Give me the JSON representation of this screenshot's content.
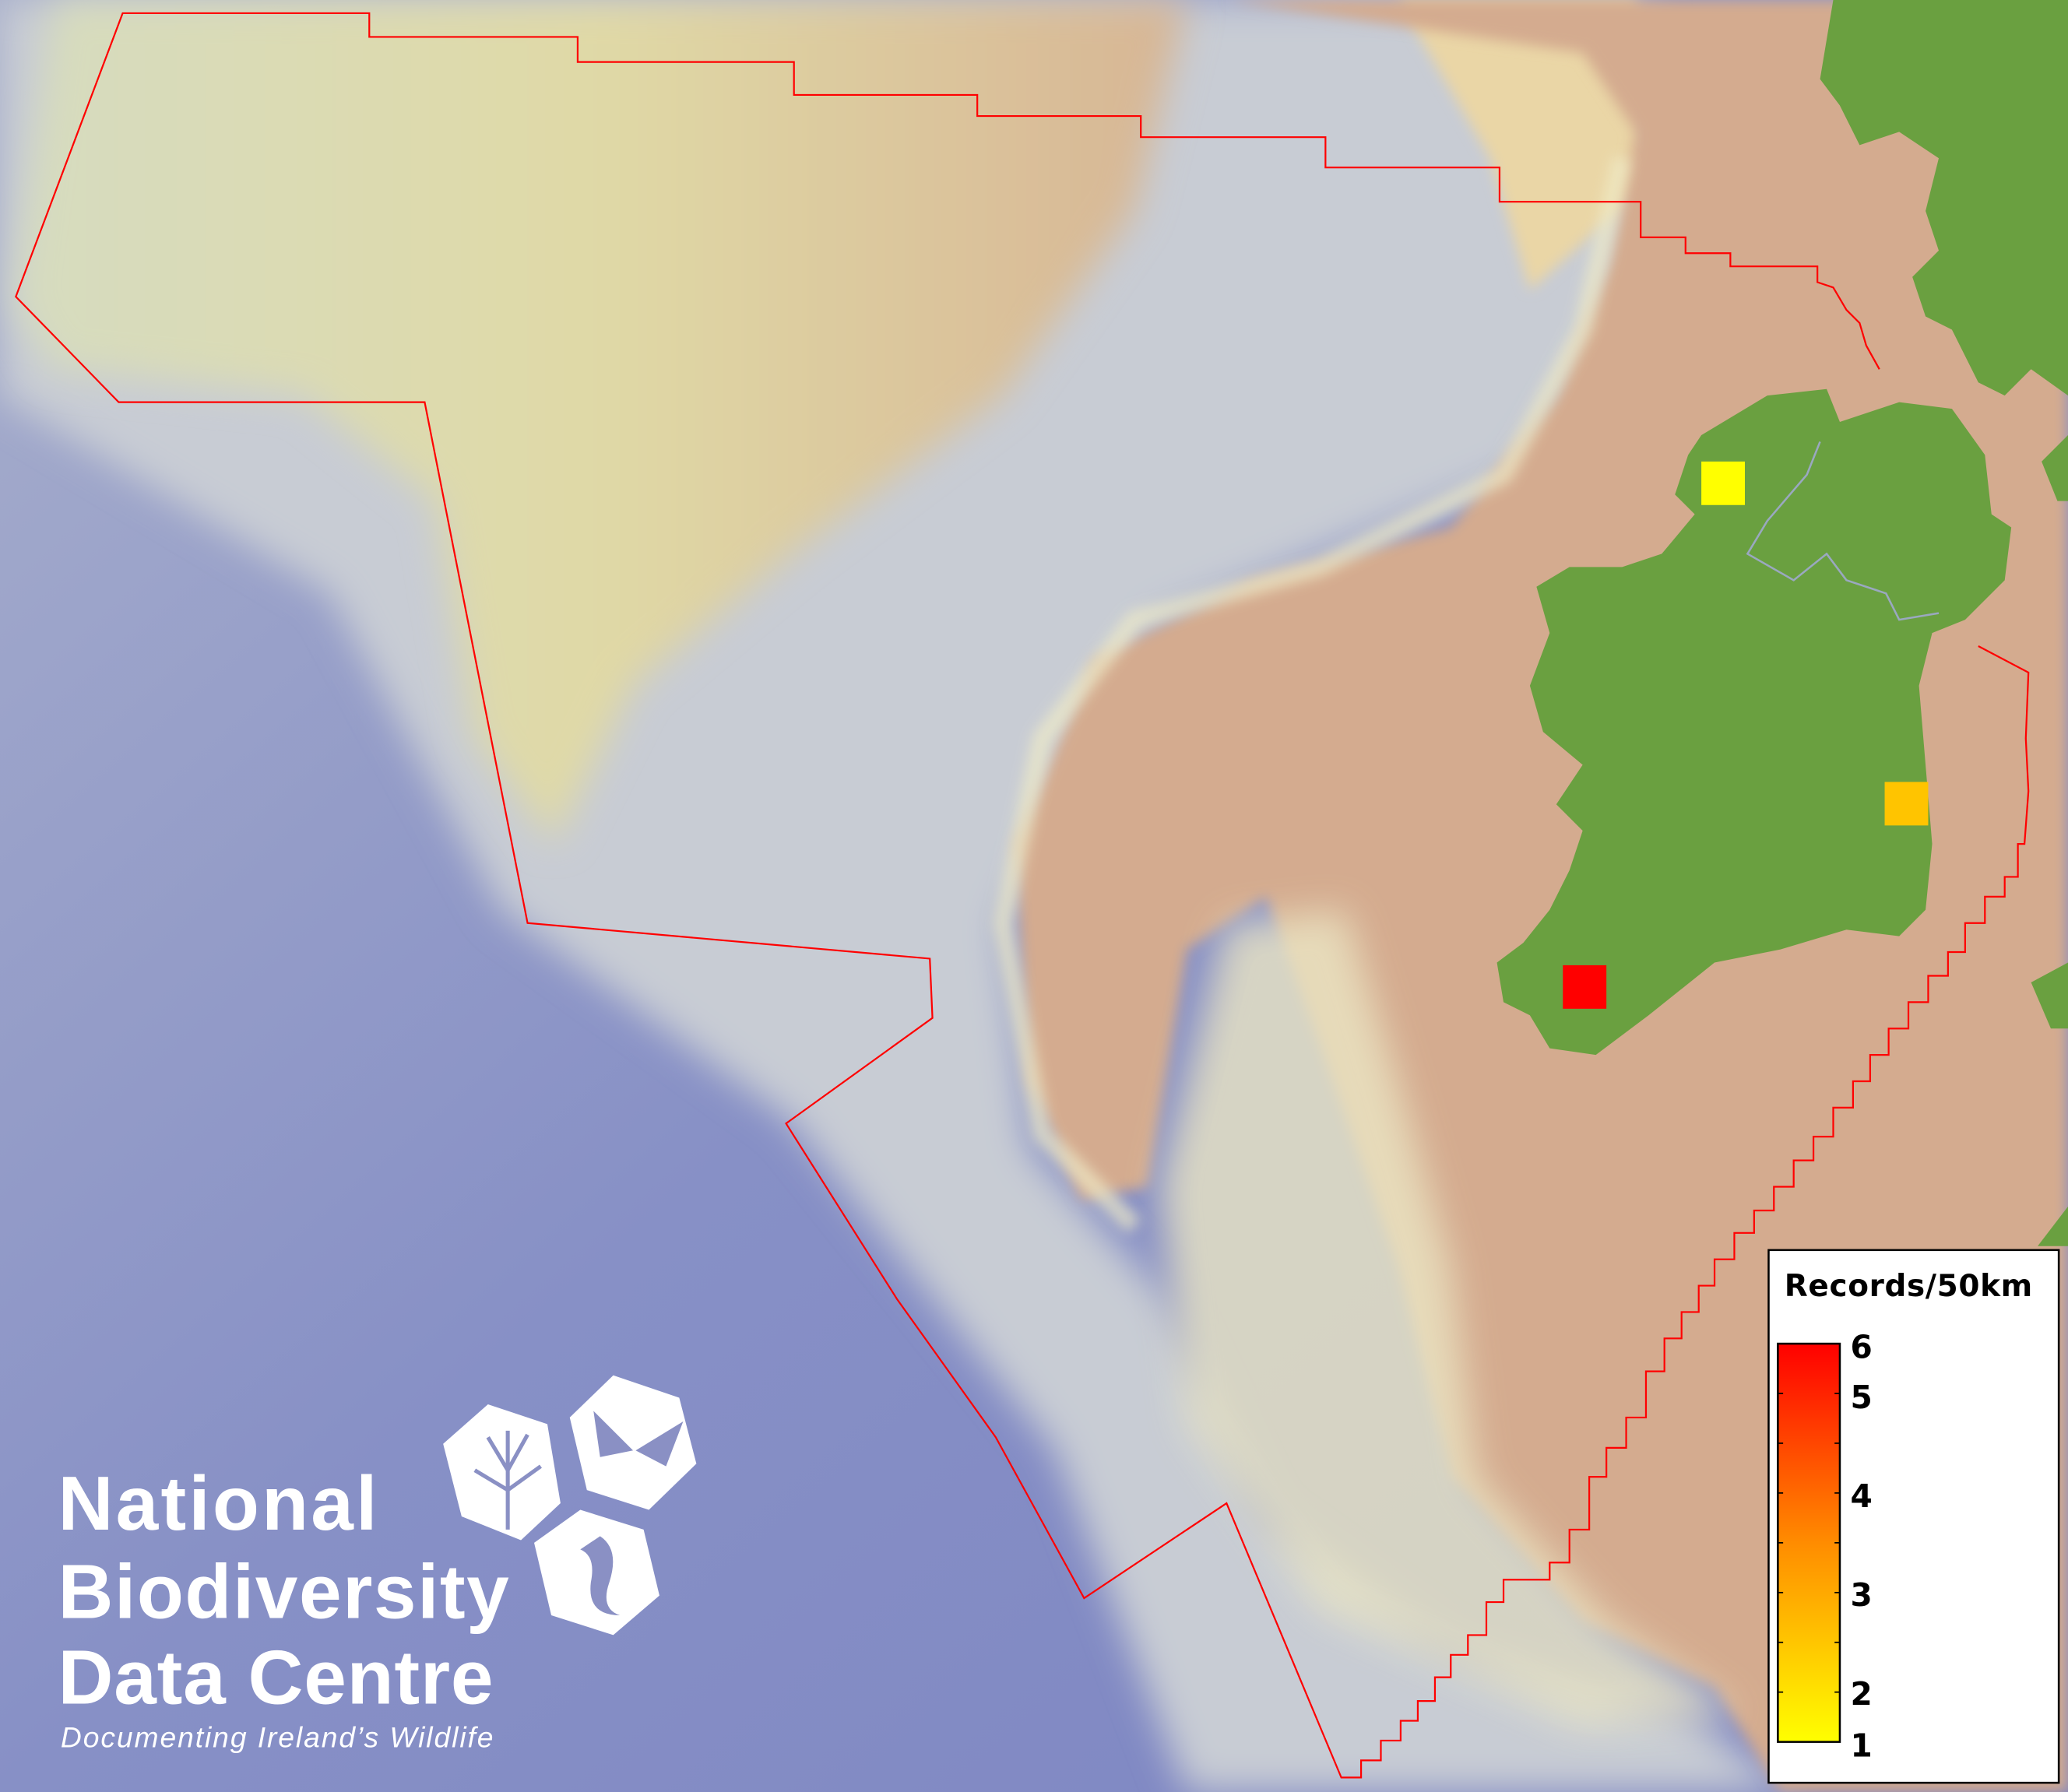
{
  "map": {
    "colors": {
      "deep_ocean": "#7f88c4",
      "slope": "#c9cdd6",
      "plateau": "#dcdcaa",
      "shelf": "#d3ab8f",
      "land": "#6aa040",
      "boundary": "#ff0000"
    },
    "records": [
      {
        "value": 1,
        "color": "#ffff00"
      },
      {
        "value": 2.5,
        "color": "#ffc400"
      },
      {
        "value": 6,
        "color": "#ff0000"
      }
    ]
  },
  "legend": {
    "title": "Records/50km",
    "min": 1,
    "max": 6,
    "color_low": "#ffff00",
    "color_high": "#ff0000",
    "ticks": [
      "6",
      "5",
      "4",
      "3",
      "2",
      "1"
    ]
  },
  "logo": {
    "line1": "National",
    "line2": "Biodiversity",
    "line3": "Data Centre",
    "tagline": "Documenting Ireland’s Wildlife",
    "icons": [
      "tree-icon",
      "butterfly-icon",
      "seahorse-icon"
    ]
  }
}
